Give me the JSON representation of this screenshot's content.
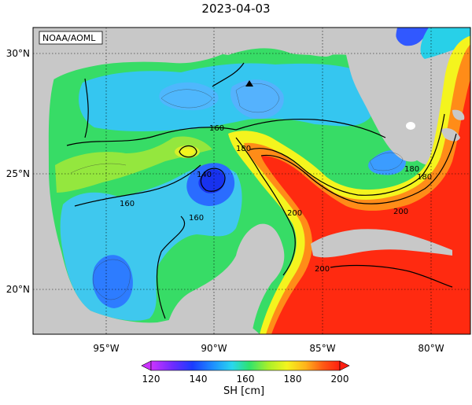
{
  "title": "2023-04-03",
  "credit": "NOAA/AOML",
  "lon_labels": [
    "95°W",
    "90°W",
    "85°W",
    "80°W"
  ],
  "lat_labels": [
    "30°N",
    "25°N",
    "20°N"
  ],
  "contour_labels": [
    "160",
    "160",
    "160",
    "180",
    "180",
    "200",
    "200",
    "140",
    "180",
    "200"
  ],
  "colorbar": {
    "title": "SH [cm]",
    "ticks": [
      "120",
      "140",
      "160",
      "180",
      "200"
    ],
    "colors": [
      "#cc33ff",
      "#6a2cff",
      "#1a3cff",
      "#1e90ff",
      "#29d7ee",
      "#2ee36e",
      "#a8f02a",
      "#f4f41e",
      "#ffb21b",
      "#ff5a14",
      "#ff1e10"
    ]
  },
  "marker": "triangle"
}
